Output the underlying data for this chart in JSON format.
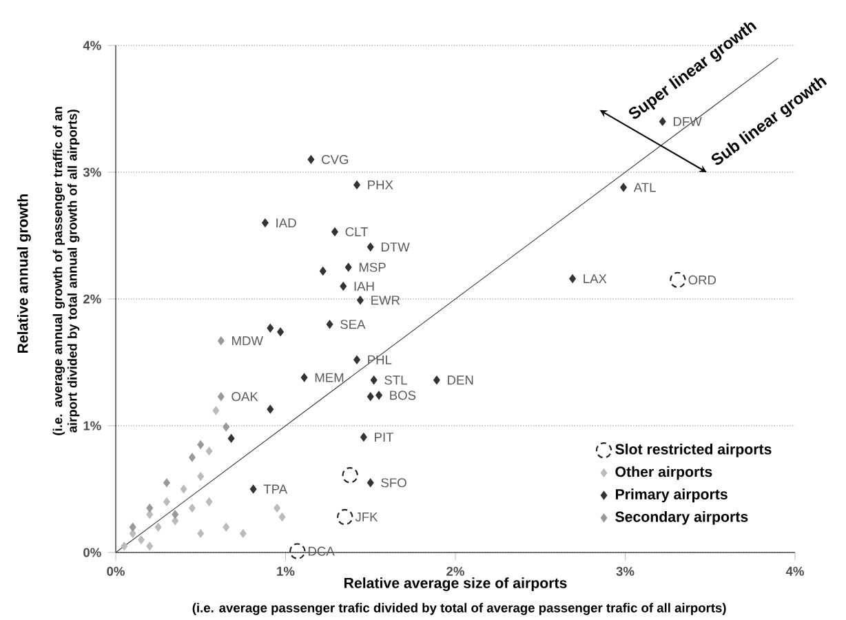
{
  "chart_data": {
    "type": "scatter",
    "xlabel": "Relative average size of airports",
    "ylabel": "Relative annual growth",
    "xlim": [
      0,
      4
    ],
    "ylim": [
      0,
      4
    ],
    "xticks": [
      {
        "value": 0,
        "label": "0%"
      },
      {
        "value": 1,
        "label": "1%"
      },
      {
        "value": 2,
        "label": "2%"
      },
      {
        "value": 3,
        "label": "3%"
      },
      {
        "value": 4,
        "label": "4%"
      }
    ],
    "yticks": [
      {
        "value": 0,
        "label": "0%"
      },
      {
        "value": 1,
        "label": "1%"
      },
      {
        "value": 2,
        "label": "2%"
      },
      {
        "value": 3,
        "label": "3%"
      },
      {
        "value": 4,
        "label": "4%"
      }
    ],
    "grid": "y",
    "legend": "bottom right",
    "series": [
      {
        "name": "Slot restricted airports",
        "color": "#222222",
        "marker": "circle",
        "x": [
          3.31,
          1.38,
          1.35,
          1.07
        ],
        "values": [
          2.15,
          0.61,
          0.28,
          0.01
        ]
      },
      {
        "name": "Other airports",
        "color": "#bbbbbb",
        "marker": "diamond",
        "x": [
          0.05,
          0.1,
          0.15,
          0.2,
          0.25,
          0.3,
          0.35,
          0.4,
          0.45,
          0.5,
          0.55,
          0.59,
          0.55,
          0.65,
          0.75,
          0.95,
          0.2,
          0.5,
          0.98
        ],
        "values": [
          0.05,
          0.15,
          0.1,
          0.3,
          0.2,
          0.4,
          0.25,
          0.5,
          0.35,
          0.6,
          0.8,
          1.12,
          0.4,
          0.2,
          0.15,
          0.35,
          0.05,
          0.15,
          0.28
        ]
      },
      {
        "name": "Primary airports",
        "color": "#333333",
        "marker": "diamond",
        "x": [
          3.22,
          2.99,
          1.15,
          1.42,
          0.88,
          1.29,
          1.5,
          1.37,
          1.22,
          1.34,
          1.44,
          1.26,
          0.91,
          0.97,
          1.42,
          1.11,
          1.52,
          1.89,
          1.55,
          1.5,
          2.69,
          1.46,
          0.91,
          1.5,
          0.81,
          0.68
        ],
        "values": [
          3.4,
          2.88,
          3.1,
          2.9,
          2.6,
          2.53,
          2.41,
          2.25,
          2.22,
          2.1,
          1.99,
          1.8,
          1.77,
          1.74,
          1.52,
          1.38,
          1.36,
          1.36,
          1.24,
          1.23,
          2.16,
          0.91,
          1.13,
          0.55,
          0.5,
          0.9
        ]
      },
      {
        "name": "Secondary airports",
        "color": "#999999",
        "marker": "diamond",
        "x": [
          0.62,
          0.62,
          0.65,
          0.3,
          0.45,
          0.2,
          0.1,
          0.35,
          0.5
        ],
        "values": [
          1.67,
          1.23,
          0.99,
          0.55,
          0.75,
          0.35,
          0.2,
          0.3,
          0.85
        ]
      },
      {
        "type": "line",
        "color": "#333333",
        "x": [
          0,
          3.9
        ],
        "values": [
          0,
          3.9
        ]
      }
    ],
    "annotations": [
      "Super linear growth",
      "Sub linear growth",
      "(i.e. average passenger trafic divided by total of average passenger trafic of all airports)",
      "(i.e. average annual growth of passenger traffic of an airport divided by total annual growth of all airports)",
      {
        "text": "DFW",
        "x": 3.22,
        "y": 3.4
      },
      {
        "text": "ATL",
        "x": 2.99,
        "y": 2.88
      },
      {
        "text": "CVG",
        "x": 1.15,
        "y": 3.1
      },
      {
        "text": "PHX",
        "x": 1.42,
        "y": 2.9
      },
      {
        "text": "IAD",
        "x": 0.88,
        "y": 2.6
      },
      {
        "text": "CLT",
        "x": 1.29,
        "y": 2.53
      },
      {
        "text": "DTW",
        "x": 1.5,
        "y": 2.41
      },
      {
        "text": "MSP",
        "x": 1.37,
        "y": 2.25
      },
      {
        "text": "IAH",
        "x": 1.34,
        "y": 2.1
      },
      {
        "text": "EWR",
        "x": 1.44,
        "y": 1.99
      },
      {
        "text": "SEA",
        "x": 1.26,
        "y": 1.8
      },
      {
        "text": "MDW",
        "x": 0.62,
        "y": 1.67
      },
      {
        "text": "PHL",
        "x": 1.42,
        "y": 1.52
      },
      {
        "text": "MEM",
        "x": 1.11,
        "y": 1.38
      },
      {
        "text": "STL",
        "x": 1.52,
        "y": 1.36
      },
      {
        "text": "DEN",
        "x": 1.89,
        "y": 1.36
      },
      {
        "text": "BOS",
        "x": 1.55,
        "y": 1.24
      },
      {
        "text": "LAX",
        "x": 2.69,
        "y": 2.16
      },
      {
        "text": "ORD",
        "x": 3.31,
        "y": 2.15
      },
      {
        "text": "PIT",
        "x": 1.46,
        "y": 0.91
      },
      {
        "text": "SFO",
        "x": 1.5,
        "y": 0.55
      },
      {
        "text": "JFK",
        "x": 1.35,
        "y": 0.28
      },
      {
        "text": "DCA",
        "x": 1.07,
        "y": 0.01
      },
      {
        "text": "TPA",
        "x": 0.81,
        "y": 0.5
      },
      {
        "text": "OAK",
        "x": 0.62,
        "y": 1.23
      }
    ]
  }
}
